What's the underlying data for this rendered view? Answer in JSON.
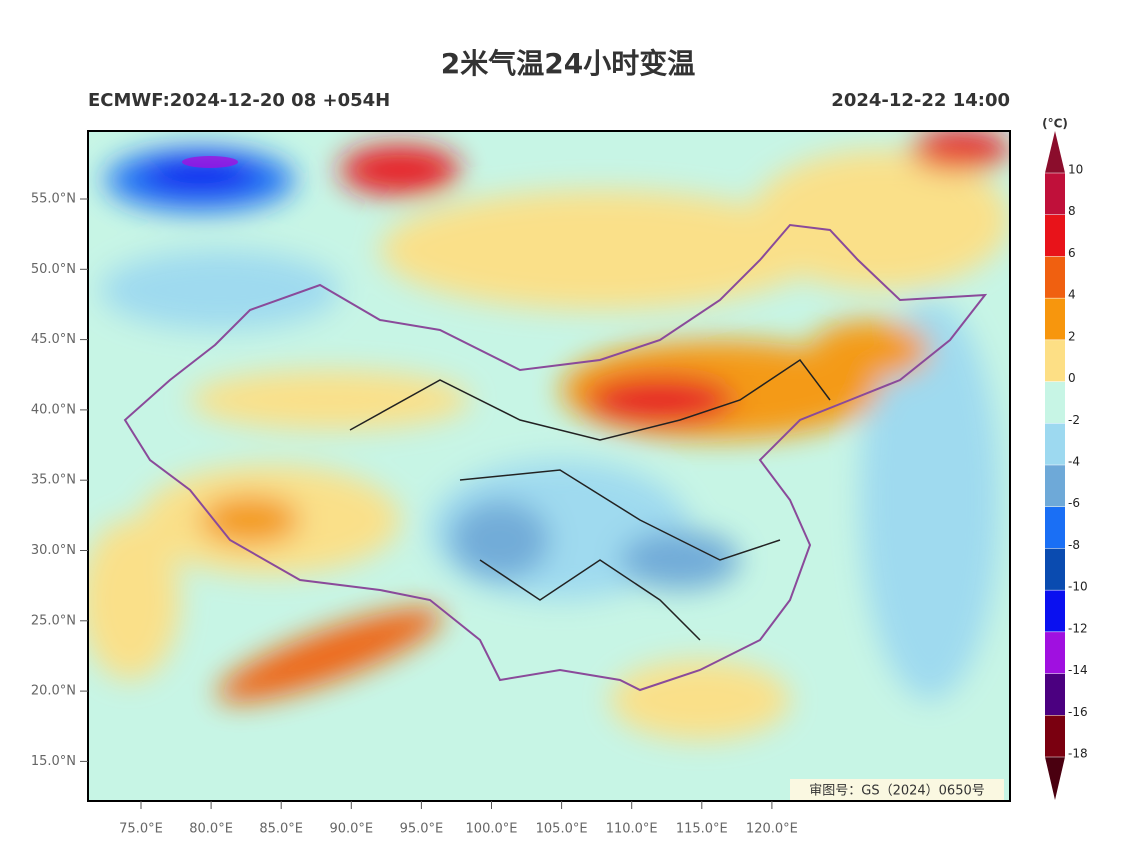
{
  "header": {
    "title": "2米气温24小时变温",
    "left": "ECMWF:2024-12-20 08 +054H",
    "right": "2024-12-22 14:00"
  },
  "map": {
    "lat_ticks": [
      {
        "value": 55,
        "label": "55.0°N"
      },
      {
        "value": 50,
        "label": "50.0°N"
      },
      {
        "value": 45,
        "label": "45.0°N"
      },
      {
        "value": 40,
        "label": "40.0°N"
      },
      {
        "value": 35,
        "label": "35.0°N"
      },
      {
        "value": 30,
        "label": "30.0°N"
      },
      {
        "value": 25,
        "label": "25.0°N"
      },
      {
        "value": 20,
        "label": "20.0°N"
      },
      {
        "value": 15,
        "label": "15.0°N"
      }
    ],
    "lon_ticks": [
      {
        "value": 75,
        "label": "75.0°E"
      },
      {
        "value": 80,
        "label": "80.0°E"
      },
      {
        "value": 85,
        "label": "85.0°E"
      },
      {
        "value": 90,
        "label": "90.0°E"
      },
      {
        "value": 95,
        "label": "95.0°E"
      },
      {
        "value": 100,
        "label": "100.0°E"
      },
      {
        "value": 105,
        "label": "105.0°E"
      },
      {
        "value": 110,
        "label": "110.0°E"
      },
      {
        "value": 115,
        "label": "115.0°E"
      },
      {
        "value": 120,
        "label": "120.0°E"
      }
    ],
    "review_number": "审图号：GS（2024）0650号"
  },
  "colorbar": {
    "unit": "(°C)",
    "ticks": [
      10,
      8,
      6,
      4,
      2,
      0,
      -2,
      -4,
      -6,
      -8,
      -10,
      -12,
      -14,
      -16,
      -18
    ],
    "colors": [
      "#8b0d2c",
      "#c0103a",
      "#e8131a",
      "#f06010",
      "#f7960d",
      "#fddf85",
      "#c7f5e5",
      "#9dd9f0",
      "#6ea9d8",
      "#1a6ff5",
      "#0a4bb0",
      "#0a10f0",
      "#a010e0",
      "#4b0080",
      "#7a0010",
      "#4a0010"
    ]
  }
}
